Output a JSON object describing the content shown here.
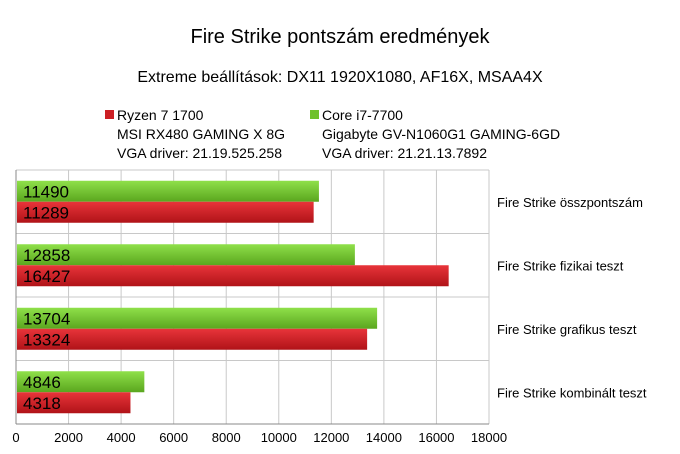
{
  "title": "Fire Strike pontszám eredmények",
  "subtitle": "Extreme beállítások: DX11 1920X1080, AF16X, MSAA4X",
  "colors": {
    "red": "#cc1f24",
    "green": "#6fc12a",
    "grid": "#c8c8c8",
    "axis": "#888888"
  },
  "legend": [
    {
      "lines": [
        "Ryzen 7 1700",
        "MSI RX480 GAMING X 8G",
        "VGA driver: 21.19.525.258"
      ],
      "color": "#cc1f24"
    },
    {
      "lines": [
        "Core i7-7700",
        "Gigabyte GV-N1060G1 GAMING-6GD",
        "VGA driver: 21.21.13.7892"
      ],
      "color": "#6fc12a"
    }
  ],
  "chart_data": {
    "type": "bar",
    "orientation": "horizontal",
    "categories": [
      "Fire Strike összpontszám",
      "Fire Strike fizikai teszt",
      "Fire Strike grafikus teszt",
      "Fire Strike kombinált teszt"
    ],
    "series": [
      {
        "name": "Core i7-7700",
        "values": [
          11490,
          12858,
          13704,
          4846
        ],
        "color": "#6fc12a"
      },
      {
        "name": "Ryzen 7 1700",
        "values": [
          11289,
          16427,
          13324,
          4318
        ],
        "color": "#cc1f24"
      }
    ],
    "xlim": [
      0,
      18000
    ],
    "xticks": [
      0,
      2000,
      4000,
      6000,
      8000,
      10000,
      12000,
      14000,
      16000,
      18000
    ],
    "grid": true
  }
}
